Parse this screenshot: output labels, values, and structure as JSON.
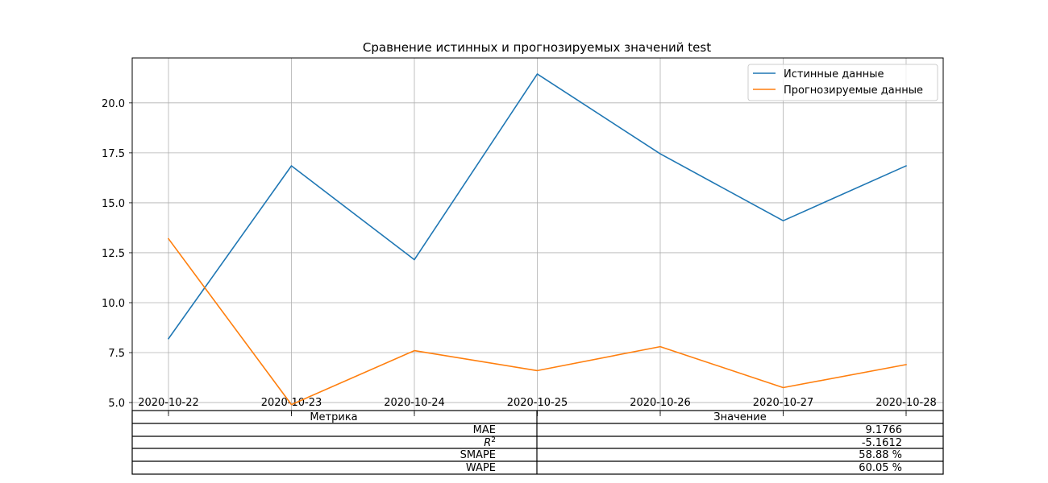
{
  "chart_data": {
    "type": "line",
    "title": "Сравнение истинных и прогнозируемых значений test",
    "xlabel": "",
    "ylabel": "",
    "x": [
      "2020-10-22",
      "2020-10-23",
      "2020-10-24",
      "2020-10-25",
      "2020-10-26",
      "2020-10-27",
      "2020-10-28"
    ],
    "series": [
      {
        "name": "Истинные данные",
        "color": "#1f77b4",
        "values": [
          8.2,
          16.85,
          12.15,
          21.45,
          17.45,
          14.1,
          16.85
        ]
      },
      {
        "name": "Прогнозируемые данные",
        "color": "#ff7f0e",
        "values": [
          13.2,
          4.9,
          7.6,
          6.6,
          7.8,
          5.75,
          6.9
        ]
      }
    ],
    "ylim": [
      4.6,
      22.25
    ],
    "yticks": [
      "5.0",
      "7.5",
      "10.0",
      "12.5",
      "15.0",
      "17.5",
      "20.0"
    ],
    "grid": true,
    "legend_position": "top-right"
  },
  "metrics_table": {
    "headers": [
      "Метрика",
      "Значение"
    ],
    "rows": [
      {
        "metric": "MAE",
        "value": "9.1766"
      },
      {
        "metric": "R",
        "metric_sup": "2",
        "value": "-5.1612"
      },
      {
        "metric": "SMAPE",
        "value": "58.88 %"
      },
      {
        "metric": "WAPE",
        "value": "60.05 %"
      }
    ]
  }
}
